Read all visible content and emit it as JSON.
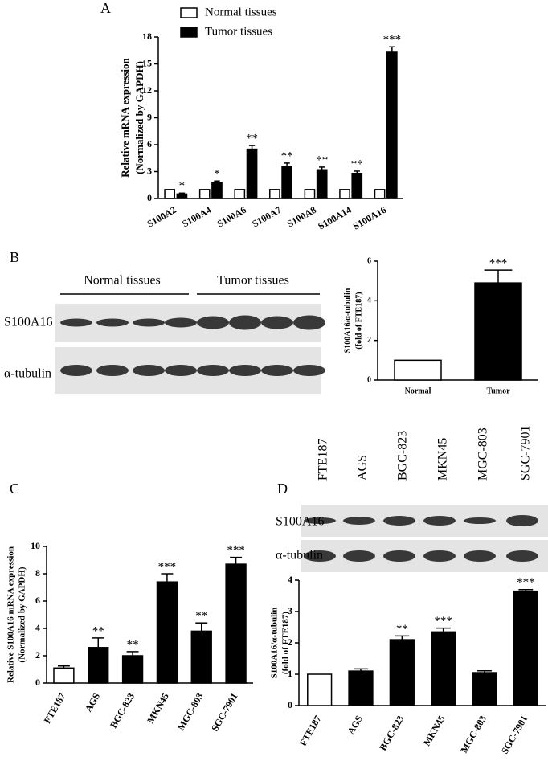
{
  "chart_data": [
    {
      "type": "bar",
      "panel": "A",
      "y_label": [
        "Relative mRNA expression",
        "(Normalized by GAPDH)"
      ],
      "categories": [
        "S100A2",
        "S100A4",
        "S100A6",
        "S100A7",
        "S100A8",
        "S100A14",
        "S100A16"
      ],
      "series": [
        {
          "name": "Normal tissues",
          "color": "#ffffff",
          "values": [
            1,
            1,
            1,
            1,
            1,
            1,
            1
          ]
        },
        {
          "name": "Tumor tissues",
          "color": "#000000",
          "values": [
            0.5,
            1.8,
            5.5,
            3.6,
            3.2,
            2.8,
            16.3
          ],
          "errors": [
            0.1,
            0.15,
            0.4,
            0.35,
            0.3,
            0.25,
            0.6
          ],
          "annotations": [
            "*",
            "*",
            "**",
            "**",
            "**",
            "**",
            "***"
          ]
        }
      ],
      "ylim": [
        0,
        18
      ],
      "yticks": [
        0,
        3,
        6,
        9,
        12,
        15,
        18
      ]
    },
    {
      "type": "bar",
      "panel": "B",
      "y_label": [
        "S100A16/α-tubulin",
        "(fold of FTE187)"
      ],
      "categories": [
        "Normal",
        "Tumor"
      ],
      "values": [
        1,
        4.9
      ],
      "errors": [
        null,
        0.65
      ],
      "annotations": [
        null,
        "***"
      ],
      "colors": [
        "#ffffff",
        "#000000"
      ],
      "ylim": [
        0,
        6
      ],
      "yticks": [
        0,
        2,
        4,
        6
      ]
    },
    {
      "type": "bar",
      "panel": "C",
      "y_label": [
        "Relative S100A16 mRNA expression",
        "(Normalized by GAPDH)"
      ],
      "categories": [
        "FTE187",
        "AGS",
        "BGC-823",
        "MKN45",
        "MGC-803",
        "SGC-7901"
      ],
      "values": [
        1.1,
        2.6,
        2.0,
        7.4,
        3.8,
        8.7
      ],
      "errors": [
        0.15,
        0.7,
        0.3,
        0.6,
        0.6,
        0.5
      ],
      "annotations": [
        null,
        "**",
        "**",
        "***",
        "**",
        "***"
      ],
      "colors": [
        "#ffffff",
        "#000000",
        "#000000",
        "#000000",
        "#000000",
        "#000000"
      ],
      "ylim": [
        0,
        10
      ],
      "yticks": [
        0,
        2,
        4,
        6,
        8,
        10
      ]
    },
    {
      "type": "bar",
      "panel": "D",
      "y_label": [
        "S100A16/α-tubulin",
        "(fold of FTE187)"
      ],
      "categories": [
        "FTE187",
        "AGS",
        "BGC-823",
        "MKN45",
        "MGC-803",
        "SGC-7901"
      ],
      "values": [
        1.0,
        1.1,
        2.1,
        2.35,
        1.05,
        3.65
      ],
      "errors": [
        null,
        0.07,
        0.12,
        0.12,
        0.06,
        0.05
      ],
      "annotations": [
        null,
        null,
        "**",
        "***",
        null,
        "***"
      ],
      "colors": [
        "#ffffff",
        "#000000",
        "#000000",
        "#000000",
        "#000000",
        "#000000"
      ],
      "ylim": [
        0,
        4
      ],
      "yticks": [
        0,
        1,
        2,
        3,
        4
      ]
    }
  ],
  "blots": [
    {
      "groups": [
        "Normal tissues",
        "Tumor tissues"
      ],
      "rows": [
        "S100A16",
        "α-tubulin"
      ]
    },
    {
      "lanes": [
        "FTE187",
        "AGS",
        "BGC-823",
        "MKN45",
        "MGC-803",
        "SGC-7901"
      ],
      "rows": [
        "S100A16",
        "α-tubulin"
      ]
    }
  ]
}
